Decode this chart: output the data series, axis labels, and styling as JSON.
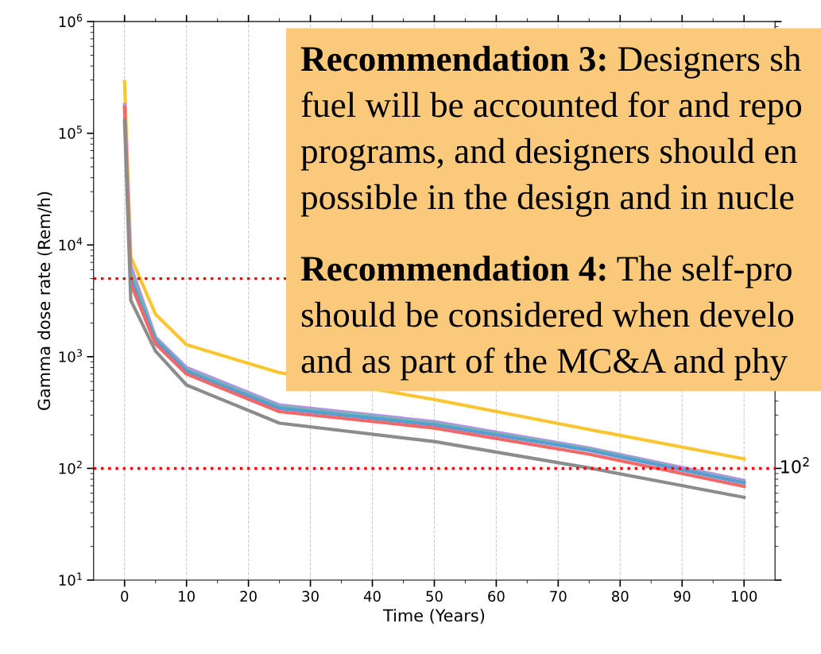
{
  "chart_data": {
    "type": "line",
    "xlabel": "Time (Years)",
    "ylabel": "Gamma dose rate (Rem/h)",
    "x": [
      0,
      1,
      5,
      10,
      25,
      50,
      75,
      100
    ],
    "series": [
      {
        "color": "#fbc52f",
        "values": [
          290000,
          7800,
          2400,
          1280,
          720,
          414,
          223,
          122
        ]
      },
      {
        "color": "#b392e6",
        "values": [
          180000,
          6500,
          1500,
          800,
          370,
          262,
          152,
          78
        ]
      },
      {
        "color": "#5fc3a0",
        "values": [
          null,
          5500,
          1450,
          760,
          355,
          252,
          148,
          75
        ]
      },
      {
        "color": "#5b9bd5",
        "values": [
          null,
          5000,
          1400,
          740,
          345,
          245,
          145,
          74
        ]
      },
      {
        "color": "#f06868",
        "values": [
          170000,
          4500,
          1300,
          700,
          322,
          230,
          134,
          69
        ]
      },
      {
        "color": "#8c8c8c",
        "values": [
          130000,
          3200,
          1120,
          558,
          254,
          174,
          101,
          55
        ]
      }
    ],
    "log": "y",
    "xlim": [
      -5,
      105
    ],
    "xticks": [
      0,
      10,
      20,
      30,
      40,
      50,
      60,
      70,
      80,
      90,
      100
    ],
    "ylim": [
      10,
      1000000
    ],
    "yticks": [
      {
        "value": 10,
        "label": "10$^{1}$"
      },
      {
        "value": 100,
        "label": "10$^{2}$"
      },
      {
        "value": 1000,
        "label": "10$^{3}$"
      },
      {
        "value": 10000,
        "label": "10$^{4}$"
      },
      {
        "value": 100000,
        "label": "10$^{5}$"
      },
      {
        "value": 1000000,
        "label": "10$^{6}$"
      }
    ],
    "grid": "x",
    "marker": "none",
    "line_style": "solid",
    "ref_lines": [
      {
        "axis": "y",
        "value": 5000,
        "color": "#ff0000",
        "line_style": "dotted"
      },
      {
        "axis": "y",
        "value": 100,
        "color": "#ff0000",
        "line_style": "dotted"
      }
    ],
    "annotations": [
      "10$^{2}$",
      "Recommendation 3: Designers sh\nfuel will be accounted for and repo\nprograms, and designers should en\npossible in the design and in nucle",
      "Recommendation 4: The self-pro\nshould be considered when develo\nand as part of the MC&A and phy"
    ]
  }
}
